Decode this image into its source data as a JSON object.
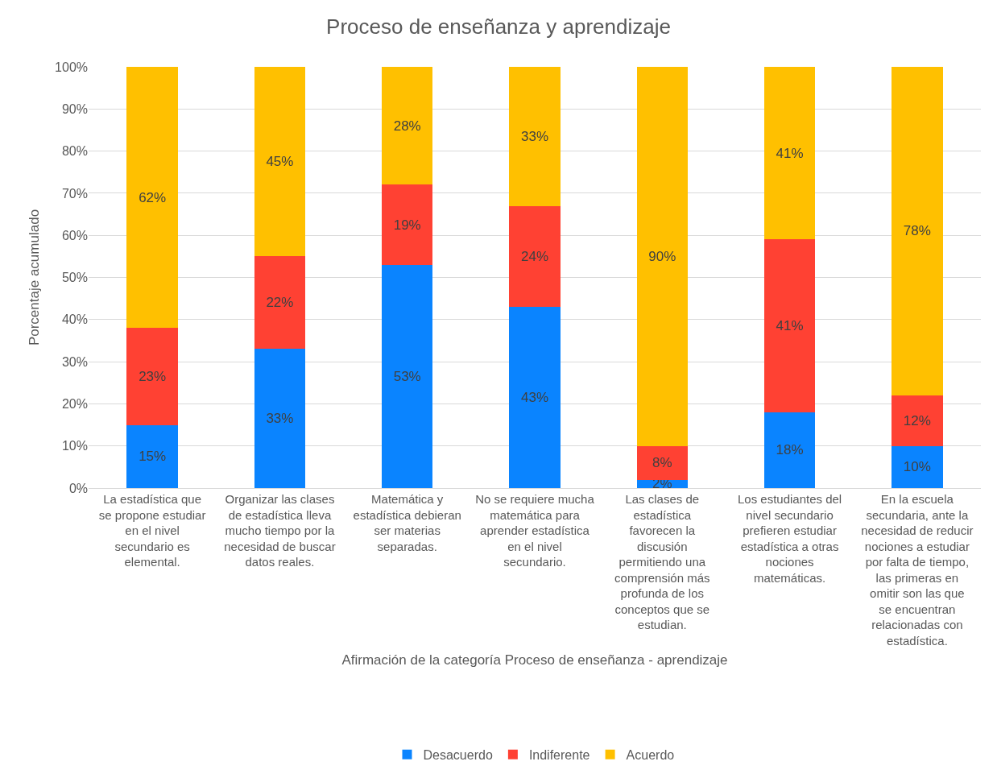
{
  "chart_data": {
    "type": "bar",
    "stacked": true,
    "title": "Proceso de enseñanza y aprendizaje",
    "xlabel": "Afirmación de la categoría Proceso de enseñanza - aprendizaje",
    "ylabel": "Porcentaje acumulado",
    "categories": [
      "La estadística que se propone estudiar en el nivel secundario es elemental.",
      "Organizar las clases de estadística lleva mucho tiempo por la necesidad de buscar datos reales.",
      "Matemática y estadística debieran ser materias separadas.",
      "No se requiere mucha matemática para aprender estadística en el nivel secundario.",
      "Las clases de estadística favorecen la discusión permitiendo una comprensión más profunda de los conceptos que se estudian.",
      "Los estudiantes del nivel secundario prefieren estudiar estadística a otras nociones matemáticas.",
      "En la escuela secundaria, ante la necesidad de reducir nociones a estudiar por falta de tiempo, las primeras en omitir son las que se encuentran relacionadas con estadística."
    ],
    "series": [
      {
        "name": "Desacuerdo",
        "color": "#0a84ff",
        "values": [
          15,
          33,
          53,
          43,
          2,
          18,
          10
        ],
        "value_labels": [
          "15%",
          "33%",
          "53%",
          "43%",
          "2%",
          "18%",
          "10%"
        ]
      },
      {
        "name": "Indiferente",
        "color": "#ff4133",
        "values": [
          23,
          22,
          19,
          24,
          8,
          41,
          12
        ],
        "value_labels": [
          "23%",
          "22%",
          "19%",
          "24%",
          "8%",
          "41%",
          "12%"
        ]
      },
      {
        "name": "Acuerdo",
        "color": "#ffc000",
        "values": [
          62,
          45,
          28,
          33,
          90,
          41,
          78
        ],
        "value_labels": [
          "62%",
          "45%",
          "28%",
          "33%",
          "90%",
          "41%",
          "78%"
        ]
      }
    ],
    "ylim": [
      0,
      100
    ],
    "yticks": [
      {
        "value": 0,
        "label": "0%"
      },
      {
        "value": 10,
        "label": "10%"
      },
      {
        "value": 20,
        "label": "20%"
      },
      {
        "value": 30,
        "label": "30%"
      },
      {
        "value": 40,
        "label": "40%"
      },
      {
        "value": 50,
        "label": "50%"
      },
      {
        "value": 60,
        "label": "60%"
      },
      {
        "value": 70,
        "label": "70%"
      },
      {
        "value": 80,
        "label": "80%"
      },
      {
        "value": 90,
        "label": "90%"
      },
      {
        "value": 100,
        "label": "100%"
      }
    ],
    "grid": "y",
    "legend": "bottom"
  }
}
